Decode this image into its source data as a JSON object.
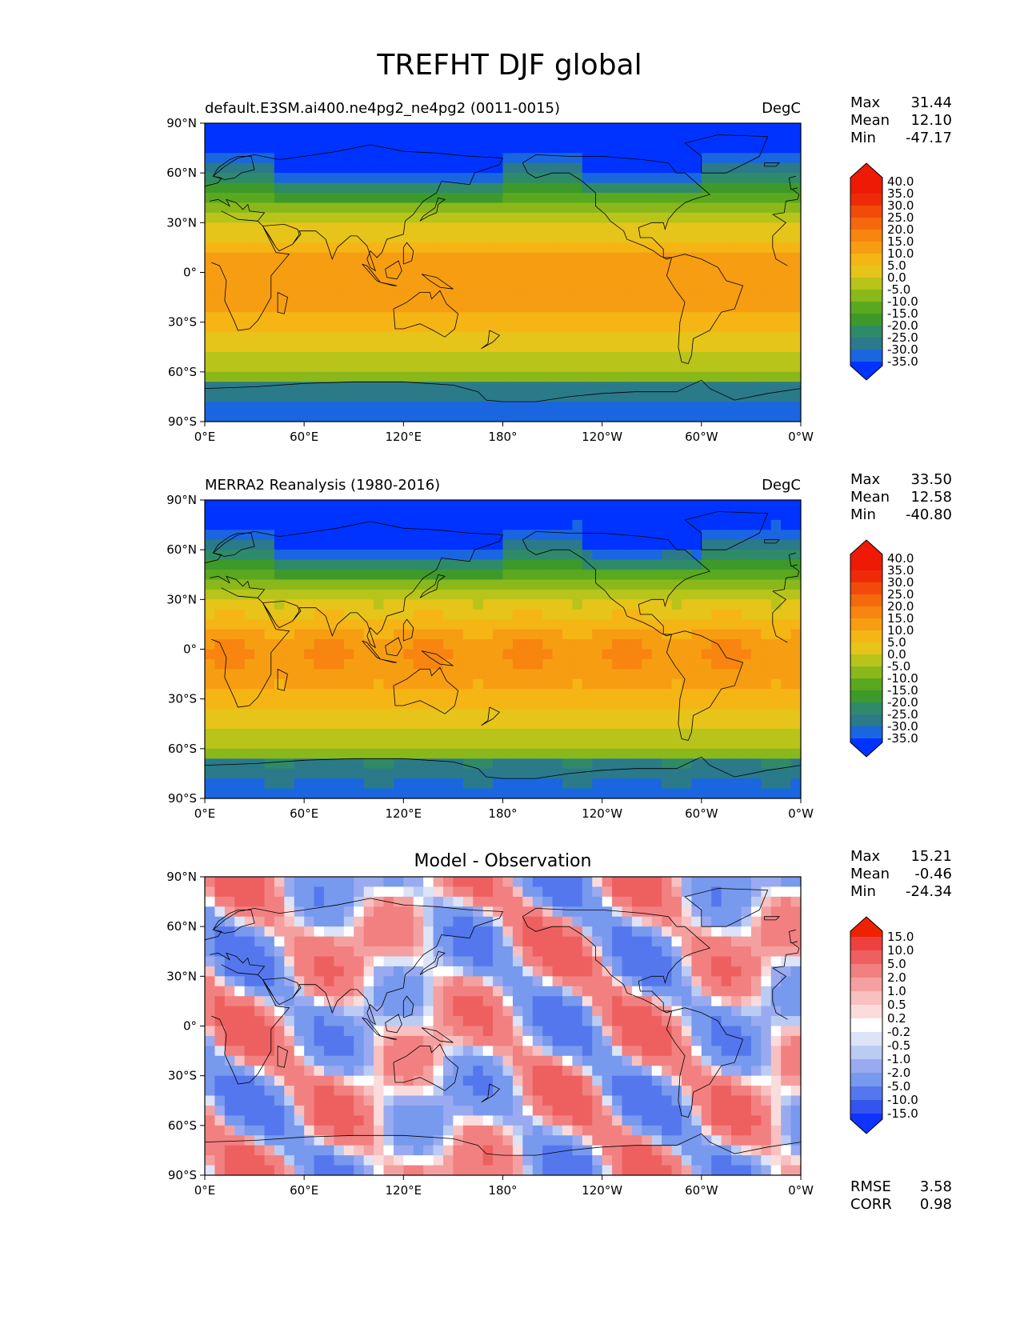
{
  "title": "TREFHT DJF global",
  "lat_labels": [
    "90°N",
    "60°N",
    "30°N",
    "0°",
    "30°S",
    "60°S",
    "90°S"
  ],
  "lon_labels": [
    "0°E",
    "60°E",
    "120°E",
    "180°",
    "120°W",
    "60°W",
    "0°W"
  ],
  "panels": [
    {
      "id": "model",
      "subtitle_left": "default.E3SM.ai400.ne4pg2_ne4pg2 (0011-0015)",
      "subtitle_center": "",
      "units": "DegC",
      "stats": [
        {
          "label": "Max",
          "value": "31.44"
        },
        {
          "label": "Mean",
          "value": "12.10"
        },
        {
          "label": "Min",
          "value": "-47.17"
        }
      ],
      "colorbar_levels": [
        "40.0",
        "35.0",
        "30.0",
        "25.0",
        "20.0",
        "15.0",
        "10.0",
        "5.0",
        "0.0",
        "-5.0",
        "-10.0",
        "-15.0",
        "-20.0",
        "-25.0",
        "-30.0",
        "-35.0"
      ]
    },
    {
      "id": "obs",
      "subtitle_left": "MERRA2 Reanalysis (1980-2016)",
      "subtitle_center": "",
      "units": "DegC",
      "stats": [
        {
          "label": "Max",
          "value": "33.50"
        },
        {
          "label": "Mean",
          "value": "12.58"
        },
        {
          "label": "Min",
          "value": "-40.80"
        }
      ],
      "colorbar_levels": [
        "40.0",
        "35.0",
        "30.0",
        "25.0",
        "20.0",
        "15.0",
        "10.0",
        "5.0",
        "0.0",
        "-5.0",
        "-10.0",
        "-15.0",
        "-20.0",
        "-25.0",
        "-30.0",
        "-35.0"
      ]
    },
    {
      "id": "diff",
      "subtitle_left": "",
      "subtitle_center": "Model - Observation",
      "units": "",
      "stats": [
        {
          "label": "Max",
          "value": "15.21"
        },
        {
          "label": "Mean",
          "value": "-0.46"
        },
        {
          "label": "Min",
          "value": "-24.34"
        }
      ],
      "colorbar_levels": [
        "15.0",
        "10.0",
        "5.0",
        "2.0",
        "1.0",
        "0.5",
        "0.2",
        "-0.2",
        "-0.5",
        "-1.0",
        "-2.0",
        "-5.0",
        "-10.0",
        "-15.0"
      ],
      "metrics": [
        {
          "label": "RMSE",
          "value": "3.58"
        },
        {
          "label": "CORR",
          "value": "0.98"
        }
      ]
    }
  ],
  "colors": {
    "temperature": [
      "#0033ff",
      "#1a66e0",
      "#2a7a8a",
      "#2f8a6a",
      "#3d9a2a",
      "#5aa81f",
      "#8ab81a",
      "#b8c41a",
      "#e6c41a",
      "#f5b515",
      "#f79d12",
      "#f7850f",
      "#f5680c",
      "#f24a0a",
      "#ef2a08",
      "#ee1a06"
    ],
    "diff": [
      "#1133ff",
      "#3355ee",
      "#5577ee",
      "#7799ee",
      "#99aaf0",
      "#bbccf4",
      "#dde4f8",
      "#ffffff",
      "#fbdcdc",
      "#f8c0c0",
      "#f5a0a0",
      "#f28080",
      "#ee6060",
      "#ee4040",
      "#ee2200",
      "#ff2200"
    ]
  }
}
